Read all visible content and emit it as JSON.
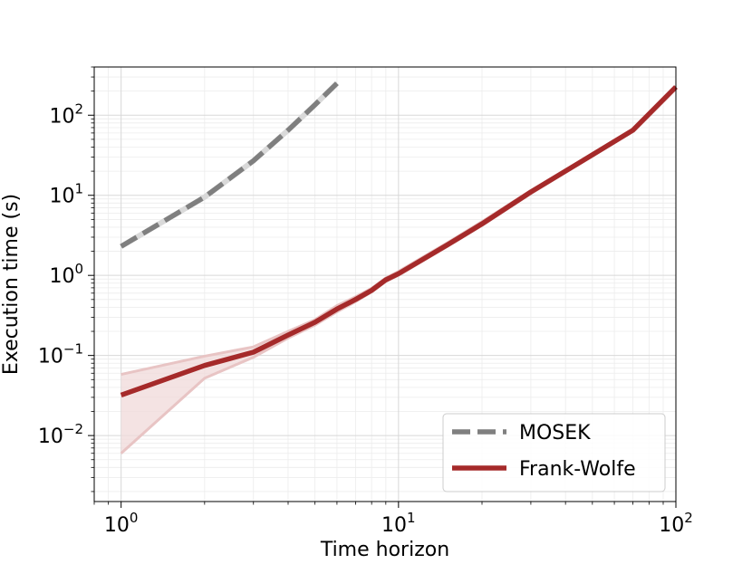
{
  "chart_data": {
    "type": "line",
    "xscale": "log",
    "yscale": "log",
    "xlim": [
      0.8,
      100
    ],
    "ylim": [
      0.0015,
      400
    ],
    "xlabel": "Time horizon",
    "ylabel": "Execution time (s)",
    "x_ticks": [
      {
        "value": 1,
        "base": "10",
        "exp": "0"
      },
      {
        "value": 10,
        "base": "10",
        "exp": "1"
      },
      {
        "value": 100,
        "base": "10",
        "exp": "2"
      }
    ],
    "y_ticks": [
      {
        "value": 0.01,
        "base": "10",
        "exp": "−2"
      },
      {
        "value": 0.1,
        "base": "10",
        "exp": "−1"
      },
      {
        "value": 1,
        "base": "10",
        "exp": "0"
      },
      {
        "value": 10,
        "base": "10",
        "exp": "1"
      },
      {
        "value": 100,
        "base": "10",
        "exp": "2"
      }
    ],
    "grid": true,
    "legend_position": "bottom-right",
    "series": [
      {
        "name": "MOSEK",
        "color": "#7f7f7f",
        "band_color": "#d9d9d9",
        "style": "dashed",
        "x": [
          1,
          2,
          3,
          4,
          5,
          6
        ],
        "y": [
          2.3,
          9.5,
          27,
          65,
          135,
          250
        ],
        "lower": [
          2.2,
          9.2,
          26,
          62,
          128,
          235
        ],
        "upper": [
          2.4,
          9.8,
          28,
          68,
          142,
          265
        ]
      },
      {
        "name": "Frank-Wolfe",
        "color": "#a52a2a",
        "band_color": "#f0d9d9",
        "band_edge_color": "#e8c4c4",
        "style": "solid",
        "x": [
          1,
          2,
          3,
          4,
          5,
          6,
          7,
          8,
          9,
          10,
          15,
          20,
          30,
          50,
          70,
          100
        ],
        "y": [
          0.032,
          0.075,
          0.11,
          0.18,
          0.26,
          0.38,
          0.5,
          0.65,
          0.88,
          1.05,
          2.4,
          4.4,
          11,
          32,
          65,
          225
        ],
        "lower": [
          0.006,
          0.052,
          0.095,
          0.165,
          0.24,
          0.35,
          0.47,
          0.62,
          0.84,
          1.0,
          2.3,
          4.2,
          10.5,
          31,
          63,
          220
        ],
        "upper": [
          0.058,
          0.098,
          0.128,
          0.2,
          0.28,
          0.42,
          0.54,
          0.69,
          0.93,
          1.12,
          2.55,
          4.7,
          11.5,
          33,
          67,
          230
        ]
      }
    ]
  }
}
